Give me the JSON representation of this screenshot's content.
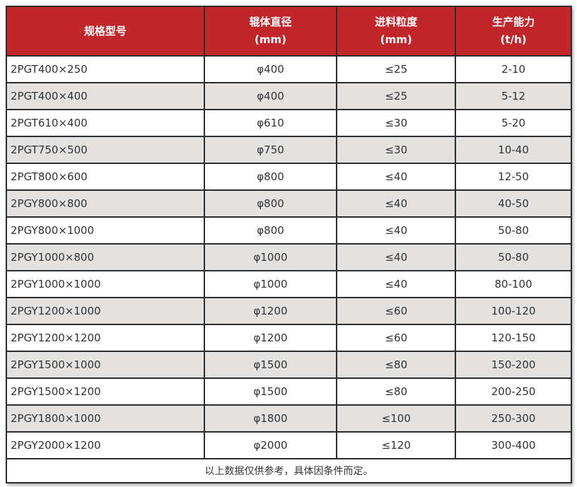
{
  "colors": {
    "header_bg": "#c1262b",
    "header_text": "#ffffff",
    "row_bg": "#ffffff",
    "row_alt_bg": "#e3e2e0",
    "border": "#2d2d2d",
    "text": "#333333"
  },
  "table": {
    "columns": [
      {
        "line1": "规格型号",
        "line2": ""
      },
      {
        "line1": "辊体直径",
        "line2": "(mm)"
      },
      {
        "line1": "进料粒度",
        "line2": "(mm)"
      },
      {
        "line1": "生产能力",
        "line2": "(t/h)"
      }
    ],
    "rows": [
      [
        "2PGT400×250",
        "φ400",
        "≤25",
        "2-10"
      ],
      [
        "2PGT400×400",
        "φ400",
        "≤25",
        "5-12"
      ],
      [
        "2PGT610×400",
        "φ610",
        "≤30",
        "5-20"
      ],
      [
        "2PGT750×500",
        "φ750",
        "≤30",
        "10-40"
      ],
      [
        "2PGT800×600",
        "φ800",
        "≤40",
        "12-50"
      ],
      [
        "2PGY800×800",
        "φ800",
        "≤40",
        "40-50"
      ],
      [
        "2PGY800×1000",
        "φ800",
        "≤40",
        "50-80"
      ],
      [
        "2PGY1000×800",
        "φ1000",
        "≤40",
        "50-80"
      ],
      [
        "2PGY1000×1000",
        "φ1000",
        "≤40",
        "80-100"
      ],
      [
        "2PGY1200×1000",
        "φ1200",
        "≤60",
        "100-120"
      ],
      [
        "2PGY1200×1200",
        "φ1200",
        "≤60",
        "120-150"
      ],
      [
        "2PGY1500×1000",
        "φ1500",
        "≤80",
        "150-200"
      ],
      [
        "2PGY1500×1200",
        "φ1500",
        "≤80",
        "200-250"
      ],
      [
        "2PGY1800×1000",
        "φ1800",
        "≤100",
        "250-300"
      ],
      [
        "2PGY2000×1200",
        "φ2000",
        "≤120",
        "300-400"
      ]
    ],
    "footer_note": "以上数据仅供参考，具体因条件而定。"
  }
}
